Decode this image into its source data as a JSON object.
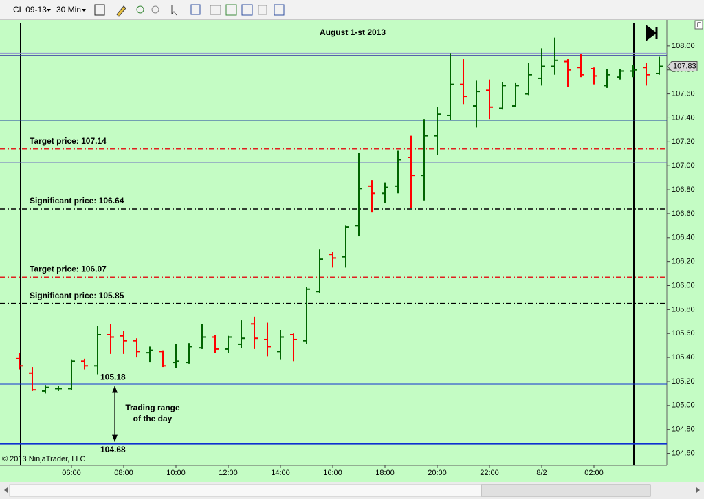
{
  "toolbar": {
    "instrument": "CL 09-13",
    "interval": "30 Min"
  },
  "axis_flag": "F",
  "copyright": "© 2013 NinjaTrader, LLC",
  "chart_data": {
    "type": "ohlc",
    "title": "August 1-st 2013",
    "categories": [
      null,
      null,
      null,
      null,
      "06:00",
      null,
      null,
      null,
      "08:00",
      null,
      null,
      null,
      "10:00",
      null,
      null,
      null,
      "12:00",
      null,
      null,
      null,
      "14:00",
      null,
      null,
      null,
      "16:00",
      null,
      null,
      null,
      "18:00",
      null,
      null,
      null,
      "20:00",
      null,
      null,
      null,
      "22:00",
      null,
      null,
      null,
      "8/2",
      null,
      null,
      null,
      "02:00",
      null,
      null,
      null,
      null,
      null
    ],
    "open": [
      105.39,
      105.27,
      105.12,
      105.14,
      105.14,
      105.37,
      105.33,
      105.59,
      105.58,
      105.54,
      105.44,
      105.45,
      105.36,
      105.36,
      105.48,
      105.57,
      105.47,
      105.51,
      105.68,
      105.55,
      105.45,
      105.59,
      105.54,
      105.95,
      106.26,
      106.24,
      106.5,
      106.83,
      106.77,
      106.83,
      107.07,
      106.92,
      107.25,
      107.42,
      107.68,
      107.5,
      107.63,
      107.48,
      107.5,
      107.6,
      107.73,
      107.83,
      107.87,
      107.82,
      107.81,
      107.67,
      107.74,
      107.79,
      107.82,
      107.77
    ],
    "high": [
      105.44,
      105.32,
      105.17,
      105.16,
      105.38,
      105.39,
      105.66,
      105.68,
      105.62,
      105.56,
      105.49,
      105.46,
      105.51,
      105.52,
      105.68,
      105.59,
      105.58,
      105.71,
      105.74,
      105.69,
      105.63,
      105.6,
      105.99,
      106.3,
      106.28,
      106.5,
      107.11,
      106.88,
      106.86,
      107.13,
      107.25,
      107.39,
      107.49,
      107.94,
      107.89,
      107.71,
      107.72,
      107.7,
      107.69,
      107.86,
      107.98,
      108.07,
      107.89,
      107.93,
      107.82,
      107.81,
      107.81,
      107.84,
      107.86,
      107.91
    ],
    "low": [
      105.3,
      105.12,
      105.1,
      105.12,
      105.13,
      105.3,
      105.26,
      105.43,
      105.43,
      105.4,
      105.36,
      105.32,
      105.31,
      105.35,
      105.47,
      105.44,
      105.44,
      105.48,
      105.47,
      105.41,
      105.38,
      105.37,
      105.51,
      105.94,
      106.15,
      106.15,
      106.41,
      106.61,
      106.69,
      106.77,
      106.65,
      106.71,
      107.09,
      107.38,
      107.51,
      107.32,
      107.39,
      107.47,
      107.49,
      107.59,
      107.67,
      107.76,
      107.66,
      107.74,
      107.68,
      107.65,
      107.72,
      107.74,
      107.67,
      107.76
    ],
    "close": [
      105.33,
      105.13,
      105.15,
      105.14,
      105.37,
      105.33,
      105.59,
      105.57,
      105.54,
      105.45,
      105.46,
      105.33,
      105.37,
      105.49,
      105.57,
      105.47,
      105.57,
      105.56,
      105.56,
      105.49,
      105.57,
      105.55,
      105.97,
      106.22,
      106.23,
      106.49,
      106.81,
      106.77,
      106.82,
      107.05,
      106.92,
      107.25,
      107.43,
      107.68,
      107.58,
      107.62,
      107.49,
      107.67,
      107.67,
      107.76,
      107.83,
      107.88,
      107.8,
      107.76,
      107.75,
      107.76,
      107.79,
      107.8,
      107.76,
      107.83
    ],
    "up_color": "#006400",
    "down_color": "#ff0000",
    "ylim": [
      104.5,
      108.2
    ],
    "yticks": [
      {
        "value": 104.6,
        "label": "104.60"
      },
      {
        "value": 104.8,
        "label": "104.80"
      },
      {
        "value": 105,
        "label": "105.00"
      },
      {
        "value": 105.2,
        "label": "105.20"
      },
      {
        "value": 105.4,
        "label": "105.40"
      },
      {
        "value": 105.6,
        "label": "105.60"
      },
      {
        "value": 105.8,
        "label": "105.80"
      },
      {
        "value": 106,
        "label": "106.00"
      },
      {
        "value": 106.2,
        "label": "106.20"
      },
      {
        "value": 106.4,
        "label": "106.40"
      },
      {
        "value": 106.6,
        "label": "106.60"
      },
      {
        "value": 106.8,
        "label": "106.80"
      },
      {
        "value": 107,
        "label": "107.00"
      },
      {
        "value": 107.2,
        "label": "107.20"
      },
      {
        "value": 107.4,
        "label": "107.40"
      },
      {
        "value": 107.6,
        "label": "107.60"
      },
      {
        "value": 107.8,
        "label": "107.80"
      },
      {
        "value": 108,
        "label": "108.00"
      }
    ],
    "hlines": [
      {
        "value": 107.94,
        "color": "#9090d0",
        "style": "solid",
        "width": 1
      },
      {
        "value": 107.92,
        "color": "#3030a0",
        "style": "solid",
        "width": 1
      },
      {
        "value": 107.38,
        "color": "#2040a0",
        "style": "solid",
        "width": 1
      },
      {
        "value": 107.14,
        "color": "#e02020",
        "style": "dashdot",
        "width": 1.5,
        "label": "Target price: 107.14"
      },
      {
        "value": 107.03,
        "color": "#7070c0",
        "style": "solid",
        "width": 1
      },
      {
        "value": 106.64,
        "color": "#000000",
        "style": "dashdot",
        "width": 1.5,
        "label": "Significant price: 106.64"
      },
      {
        "value": 106.07,
        "color": "#e02020",
        "style": "dashdot",
        "width": 1.5,
        "label": "Target price: 106.07"
      },
      {
        "value": 105.85,
        "color": "#000000",
        "style": "dashdot",
        "width": 1.5,
        "label": "Significant price: 105.85"
      },
      {
        "value": 105.18,
        "color": "#1030d0",
        "style": "solid",
        "width": 2,
        "label": "105.18"
      },
      {
        "value": 104.68,
        "color": "#1030d0",
        "style": "solid",
        "width": 2,
        "label": "104.68"
      }
    ],
    "range_note": [
      "Trading range",
      "of the day"
    ],
    "last_price": 107.83,
    "grid": false
  }
}
